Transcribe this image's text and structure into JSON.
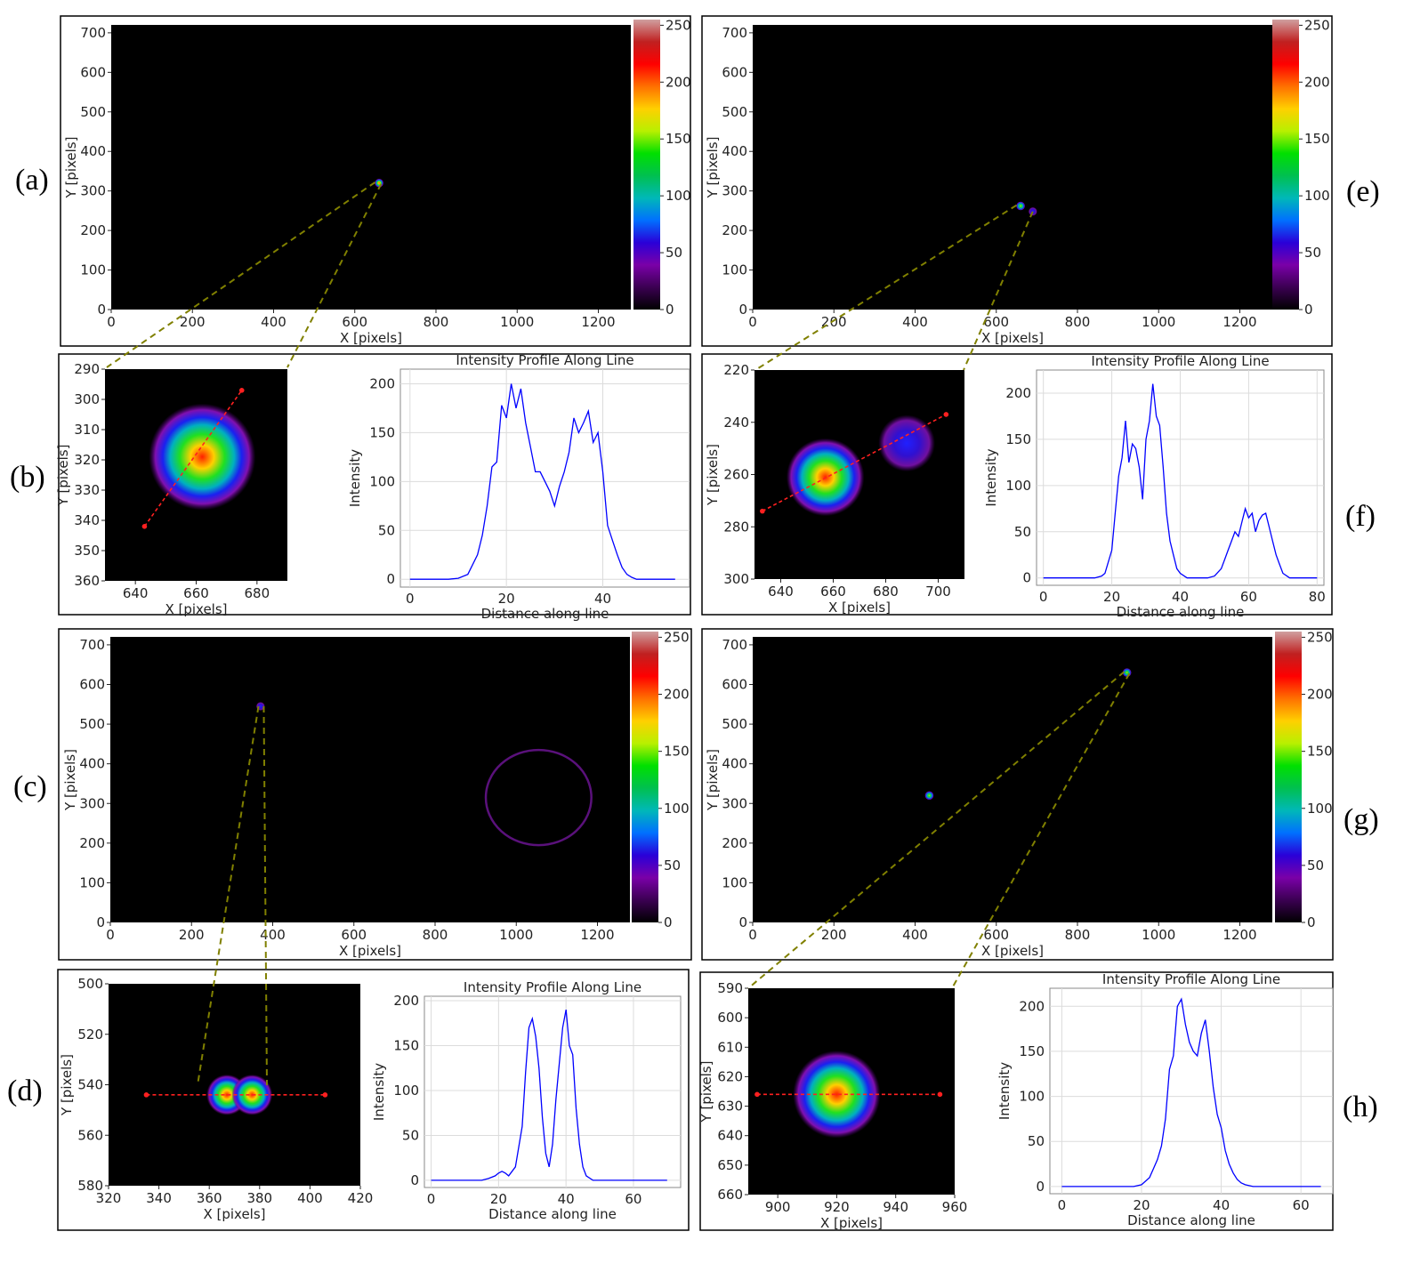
{
  "panel_labels": {
    "a": "(a)",
    "b": "(b)",
    "c": "(c)",
    "d": "(d)",
    "e": "(e)",
    "f": "(f)",
    "g": "(g)",
    "h": "(h)"
  },
  "colors": {
    "line": "#0000ff",
    "dash": "#808000",
    "cut_line": "#ff2020",
    "frame": "#000000"
  },
  "colorbar": {
    "ticks": [
      0,
      50,
      100,
      150,
      200,
      250
    ],
    "stops": [
      "#000000",
      "#3b0052",
      "#7a00a8",
      "#2a00d8",
      "#0070ff",
      "#00b8b8",
      "#00c050",
      "#00e000",
      "#b8f000",
      "#ffd000",
      "#ff7000",
      "#ff0000",
      "#c02020",
      "#d0a0a0"
    ]
  },
  "chart_data": [
    {
      "id": "a",
      "type": "heatmap",
      "xlabel": "X [pixels]",
      "ylabel": "Y [pixels]",
      "xlim": [
        0,
        1280
      ],
      "ylim": [
        0,
        720
      ],
      "xticks": [
        0,
        200,
        400,
        600,
        800,
        1000,
        1200
      ],
      "yticks": [
        0,
        100,
        200,
        300,
        400,
        500,
        600,
        700
      ],
      "spots": [
        {
          "x": 660,
          "y": 320,
          "r": 10,
          "peak": 200
        }
      ],
      "rings": [],
      "colorbar_ticks": [
        0,
        50,
        100,
        150,
        200,
        250
      ]
    },
    {
      "id": "b",
      "type": "heatmap",
      "xlabel": "X [pixels]",
      "ylabel": "Y [pixels]",
      "xlim": [
        630,
        690
      ],
      "ylim": [
        360,
        290
      ],
      "xticks": [
        640,
        660,
        680
      ],
      "yticks": [
        290,
        300,
        310,
        320,
        330,
        340,
        350,
        360
      ],
      "spots": [
        {
          "x": 662,
          "y": 319,
          "r": 13,
          "peak": 200
        }
      ],
      "cut": {
        "x1": 643,
        "y1": 342,
        "x2": 675,
        "y2": 297
      }
    },
    {
      "id": "b_profile",
      "type": "line",
      "title": "Intensity Profile Along Line",
      "xlabel": "Distance along line",
      "ylabel": "Intensity",
      "xlim": [
        -2,
        58
      ],
      "ylim": [
        -8,
        215
      ],
      "xticks": [
        0,
        20,
        40
      ],
      "yticks": [
        0,
        50,
        100,
        150,
        200
      ],
      "x": [
        0,
        2,
        4,
        6,
        8,
        10,
        12,
        14,
        15,
        16,
        17,
        18,
        19,
        20,
        21,
        22,
        23,
        24,
        25,
        26,
        27,
        28,
        29,
        30,
        31,
        32,
        33,
        34,
        35,
        36,
        37,
        38,
        39,
        40,
        41,
        42,
        43,
        44,
        45,
        46,
        47,
        48,
        50,
        52,
        55
      ],
      "y": [
        0,
        0,
        0,
        0,
        0,
        1,
        5,
        25,
        45,
        75,
        115,
        120,
        178,
        165,
        200,
        175,
        195,
        160,
        135,
        110,
        110,
        100,
        90,
        75,
        95,
        110,
        130,
        165,
        150,
        160,
        172,
        140,
        150,
        110,
        55,
        40,
        25,
        12,
        5,
        2,
        0,
        0,
        0,
        0,
        0
      ]
    },
    {
      "id": "c",
      "type": "heatmap",
      "xlabel": "X [pixels]",
      "ylabel": "Y [pixels]",
      "xlim": [
        0,
        1280
      ],
      "ylim": [
        0,
        720
      ],
      "xticks": [
        0,
        200,
        400,
        600,
        800,
        1000,
        1200
      ],
      "yticks": [
        0,
        100,
        200,
        300,
        400,
        500,
        600,
        700
      ],
      "spots": [
        {
          "x": 370,
          "y": 545,
          "r": 9,
          "peak": 60
        }
      ],
      "rings": [
        {
          "x": 1055,
          "y": 315,
          "rx": 130,
          "ry": 120,
          "peak": 20
        }
      ],
      "colorbar_ticks": [
        0,
        50,
        100,
        150,
        200,
        250
      ]
    },
    {
      "id": "d",
      "type": "heatmap",
      "xlabel": "X [pixels]",
      "ylabel": "Y [pixels]",
      "xlim": [
        320,
        420
      ],
      "ylim": [
        580,
        500
      ],
      "xticks": [
        320,
        340,
        360,
        380,
        400,
        420
      ],
      "yticks": [
        500,
        520,
        540,
        560,
        580
      ],
      "spots": [
        {
          "x": 367,
          "y": 544,
          "r": 6,
          "peak": 180
        },
        {
          "x": 377,
          "y": 544,
          "r": 6,
          "peak": 190
        }
      ],
      "cut": {
        "x1": 335,
        "y1": 544,
        "x2": 406,
        "y2": 544
      }
    },
    {
      "id": "d_profile",
      "type": "line",
      "title": "Intensity Profile Along Line",
      "xlabel": "Distance along line",
      "ylabel": "Intensity",
      "xlim": [
        -2,
        74
      ],
      "ylim": [
        -8,
        205
      ],
      "xticks": [
        0,
        20,
        40,
        60
      ],
      "yticks": [
        0,
        50,
        100,
        150,
        200
      ],
      "x": [
        0,
        5,
        10,
        15,
        17,
        19,
        20,
        21,
        22,
        23,
        25,
        27,
        28,
        29,
        30,
        31,
        32,
        33,
        34,
        35,
        36,
        37,
        38,
        39,
        40,
        41,
        42,
        43,
        44,
        45,
        46,
        48,
        50,
        55,
        60,
        65,
        70
      ],
      "y": [
        0,
        0,
        0,
        0,
        2,
        5,
        8,
        10,
        8,
        5,
        15,
        60,
        120,
        170,
        180,
        160,
        125,
        70,
        30,
        15,
        40,
        90,
        130,
        170,
        190,
        150,
        140,
        80,
        40,
        15,
        5,
        0,
        0,
        0,
        0,
        0,
        0
      ]
    },
    {
      "id": "e",
      "type": "heatmap",
      "xlabel": "X [pixels]",
      "ylabel": "Y [pixels]",
      "xlim": [
        0,
        1280
      ],
      "ylim": [
        0,
        720
      ],
      "xticks": [
        0,
        200,
        400,
        600,
        800,
        1000,
        1200
      ],
      "yticks": [
        0,
        100,
        200,
        300,
        400,
        500,
        600,
        700
      ],
      "spots": [
        {
          "x": 660,
          "y": 262,
          "r": 9,
          "peak": 150
        },
        {
          "x": 690,
          "y": 248,
          "r": 7,
          "peak": 50
        }
      ],
      "rings": [],
      "colorbar_ticks": [
        0,
        50,
        100,
        150,
        200,
        250
      ]
    },
    {
      "id": "f",
      "type": "heatmap",
      "xlabel": "X [pixels]",
      "ylabel": "Y [pixels]",
      "xlim": [
        630,
        710
      ],
      "ylim": [
        300,
        220
      ],
      "xticks": [
        640,
        660,
        680,
        700
      ],
      "yticks": [
        220,
        240,
        260,
        280,
        300
      ],
      "spots": [
        {
          "x": 657,
          "y": 261,
          "r": 11,
          "peak": 190
        },
        {
          "x": 688,
          "y": 248,
          "r": 8,
          "peak": 60
        }
      ],
      "cut": {
        "x1": 633,
        "y1": 274,
        "x2": 703,
        "y2": 237
      }
    },
    {
      "id": "f_profile",
      "type": "line",
      "title": "Intensity Profile Along Line",
      "xlabel": "Distance along line",
      "ylabel": "Intensity",
      "xlim": [
        -2,
        82
      ],
      "ylim": [
        -8,
        225
      ],
      "xticks": [
        0,
        20,
        40,
        60,
        80
      ],
      "yticks": [
        0,
        50,
        100,
        150,
        200
      ],
      "x": [
        0,
        5,
        10,
        15,
        17,
        18,
        20,
        21,
        22,
        23,
        24,
        25,
        26,
        27,
        28,
        29,
        30,
        31,
        32,
        33,
        34,
        35,
        36,
        37,
        38,
        39,
        40,
        42,
        45,
        48,
        50,
        52,
        53,
        54,
        55,
        56,
        57,
        58,
        59,
        60,
        61,
        62,
        63,
        64,
        65,
        66,
        67,
        68,
        69,
        70,
        72,
        75,
        80
      ],
      "y": [
        0,
        0,
        0,
        0,
        2,
        5,
        30,
        70,
        110,
        130,
        170,
        125,
        145,
        140,
        120,
        85,
        150,
        170,
        210,
        175,
        165,
        120,
        70,
        40,
        25,
        10,
        5,
        0,
        0,
        0,
        2,
        10,
        20,
        30,
        40,
        50,
        45,
        60,
        75,
        65,
        70,
        50,
        62,
        68,
        70,
        55,
        40,
        25,
        15,
        5,
        0,
        0,
        0
      ]
    },
    {
      "id": "g",
      "type": "heatmap",
      "xlabel": "X [pixels]",
      "ylabel": "Y [pixels]",
      "xlim": [
        0,
        1280
      ],
      "ylim": [
        0,
        720
      ],
      "xticks": [
        0,
        200,
        400,
        600,
        800,
        1000,
        1200
      ],
      "yticks": [
        0,
        100,
        200,
        300,
        400,
        500,
        600,
        700
      ],
      "spots": [
        {
          "x": 435,
          "y": 320,
          "r": 8,
          "peak": 120
        },
        {
          "x": 922,
          "y": 630,
          "r": 9,
          "peak": 140
        }
      ],
      "rings": [],
      "colorbar_ticks": [
        0,
        50,
        100,
        150,
        200,
        250
      ]
    },
    {
      "id": "h",
      "type": "heatmap",
      "xlabel": "X [pixels]",
      "ylabel": "Y [pixels]",
      "xlim": [
        890,
        960
      ],
      "ylim": [
        660,
        590
      ],
      "xticks": [
        900,
        920,
        940,
        960
      ],
      "yticks": [
        590,
        600,
        610,
        620,
        630,
        640,
        650,
        660
      ],
      "spots": [
        {
          "x": 920,
          "y": 626,
          "r": 11,
          "peak": 200
        }
      ],
      "cut": {
        "x1": 893,
        "y1": 626,
        "x2": 955,
        "y2": 626
      }
    },
    {
      "id": "h_profile",
      "type": "line",
      "title": "Intensity Profile Along Line",
      "xlabel": "Distance along line",
      "ylabel": "Intensity",
      "xlim": [
        -3,
        68
      ],
      "ylim": [
        -8,
        220
      ],
      "xticks": [
        0,
        20,
        40,
        60
      ],
      "yticks": [
        0,
        50,
        100,
        150,
        200
      ],
      "x": [
        0,
        5,
        10,
        15,
        18,
        20,
        22,
        23,
        24,
        25,
        26,
        27,
        28,
        29,
        30,
        31,
        32,
        33,
        34,
        35,
        36,
        37,
        38,
        39,
        40,
        41,
        42,
        43,
        44,
        45,
        46,
        48,
        50,
        55,
        60,
        65
      ],
      "y": [
        0,
        0,
        0,
        0,
        0,
        2,
        10,
        20,
        30,
        45,
        75,
        130,
        145,
        200,
        208,
        180,
        160,
        150,
        145,
        170,
        185,
        150,
        110,
        80,
        65,
        40,
        25,
        15,
        8,
        4,
        2,
        0,
        0,
        0,
        0,
        0
      ]
    }
  ]
}
